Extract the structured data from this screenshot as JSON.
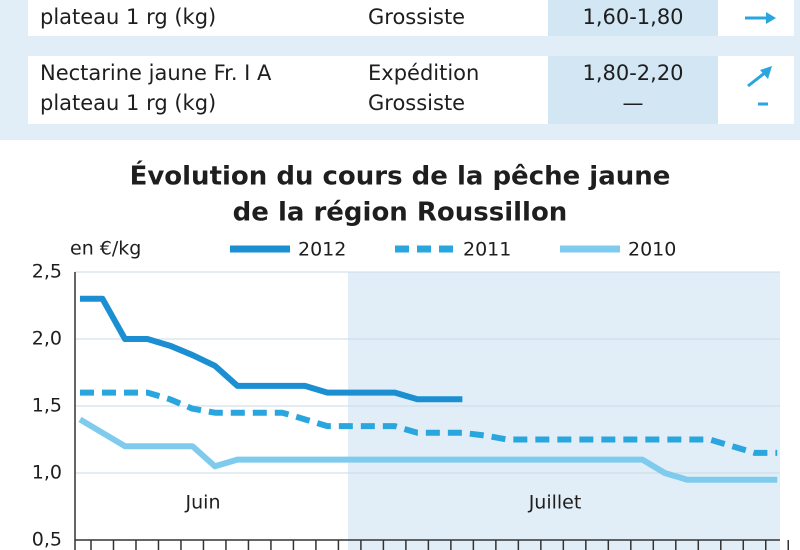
{
  "table": {
    "rows": [
      [
        [
          "plateau 1 rg (kg)"
        ],
        [
          "Grossiste"
        ],
        [
          "1,60-1,80"
        ]
      ],
      [
        [
          "Nectarine jaune Fr. I A",
          "plateau 1 rg (kg)"
        ],
        [
          "Expédition",
          "Grossiste"
        ],
        [
          "1,80-2,20",
          "—"
        ]
      ]
    ]
  },
  "chart_data": {
    "type": "line",
    "title": [
      "Évolution du cours de la pêche jaune",
      "de la région Roussillon"
    ],
    "y_label": "en €/kg",
    "annotations": [
      "Juin",
      "Juillet"
    ],
    "x": [
      0,
      1,
      2,
      3,
      4,
      5,
      6,
      7,
      8,
      9,
      10,
      11,
      12,
      13,
      14,
      15,
      16,
      17,
      18,
      19,
      20,
      21,
      22,
      23,
      24,
      25,
      26,
      27,
      28,
      29,
      30,
      31
    ],
    "xlim": [
      0,
      31.5
    ],
    "ylim": [
      0.5,
      2.5
    ],
    "yticks": [
      {
        "value": 0.5,
        "label": "0,5"
      },
      {
        "value": 1.0,
        "label": "1,0"
      },
      {
        "value": 1.5,
        "label": "1,5"
      },
      {
        "value": 2.0,
        "label": "2,0"
      },
      {
        "value": 2.5,
        "label": "2,5"
      }
    ],
    "series": [
      {
        "name": "2012",
        "color": "#1b8fd2",
        "dash": false,
        "values": [
          2.3,
          2.3,
          2.0,
          2.0,
          1.95,
          1.88,
          1.8,
          1.65,
          1.65,
          1.65,
          1.65,
          1.6,
          1.6,
          1.6,
          1.6,
          1.55,
          1.55,
          1.55,
          null,
          null,
          null,
          null,
          null,
          null,
          null,
          null,
          null,
          null,
          null,
          null,
          null,
          null
        ]
      },
      {
        "name": "2011",
        "color": "#2aa6df",
        "dash": true,
        "values": [
          1.6,
          1.6,
          1.6,
          1.6,
          1.55,
          1.48,
          1.45,
          1.45,
          1.45,
          1.45,
          1.4,
          1.35,
          1.35,
          1.35,
          1.35,
          1.3,
          1.3,
          1.3,
          1.28,
          1.25,
          1.25,
          1.25,
          1.25,
          1.25,
          1.25,
          1.25,
          1.25,
          1.25,
          1.25,
          1.2,
          1.15,
          1.15
        ]
      },
      {
        "name": "2010",
        "color": "#7fcbee",
        "dash": false,
        "values": [
          1.4,
          1.3,
          1.2,
          1.2,
          1.2,
          1.2,
          1.05,
          1.1,
          1.1,
          1.1,
          1.1,
          1.1,
          1.1,
          1.1,
          1.1,
          1.1,
          1.1,
          1.1,
          1.1,
          1.1,
          1.1,
          1.1,
          1.1,
          1.1,
          1.1,
          1.1,
          1.0,
          0.95,
          0.95,
          0.95,
          0.95,
          0.95
        ]
      }
    ]
  }
}
